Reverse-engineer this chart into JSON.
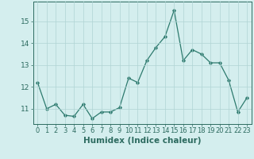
{
  "xlabel": "Humidex (Indice chaleur)",
  "x": [
    0,
    1,
    2,
    3,
    4,
    5,
    6,
    7,
    8,
    9,
    10,
    11,
    12,
    13,
    14,
    15,
    16,
    17,
    18,
    19,
    20,
    21,
    22,
    23
  ],
  "y": [
    12.2,
    11.0,
    11.2,
    10.7,
    10.65,
    11.2,
    10.55,
    10.85,
    10.85,
    11.05,
    12.4,
    12.2,
    13.2,
    13.8,
    14.3,
    15.5,
    13.2,
    13.7,
    13.5,
    13.1,
    13.1,
    12.3,
    10.85,
    11.5
  ],
  "line_color": "#2d7a6e",
  "bg_color": "#d4eeee",
  "grid_color": "#b0d4d4",
  "ylim": [
    10.3,
    15.9
  ],
  "yticks": [
    11,
    12,
    13,
    14,
    15
  ],
  "xticks": [
    0,
    1,
    2,
    3,
    4,
    5,
    6,
    7,
    8,
    9,
    10,
    11,
    12,
    13,
    14,
    15,
    16,
    17,
    18,
    19,
    20,
    21,
    22,
    23
  ],
  "tick_color": "#2d6b60",
  "xlabel_fontsize": 7.5,
  "tick_fontsize": 6.0
}
